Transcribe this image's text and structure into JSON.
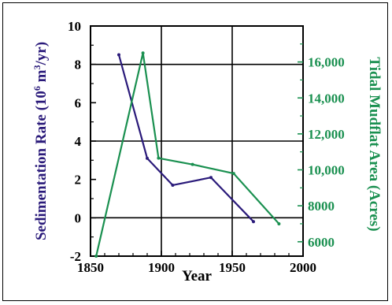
{
  "chart_data": {
    "type": "line",
    "title": "",
    "xlabel": "Year",
    "ylabel_left": "Sedimentation Rate (10^6 m^3/yr)",
    "ylabel_left_parts": {
      "pre": "Sedimentation Rate (10",
      "sup1": "6",
      "mid": " m",
      "sup2": "3",
      "post": "/yr)"
    },
    "ylabel_right": "Tidal Mudflat Area (Acres)",
    "xlim": [
      1850,
      2000
    ],
    "ylim_left": [
      -2,
      10
    ],
    "ylim_right": [
      5200,
      18000
    ],
    "x_ticks": [
      1850,
      1900,
      1950,
      2000
    ],
    "x_tick_labels": [
      "1850",
      "1900",
      "1950",
      "2000"
    ],
    "y_left_ticks": [
      -2,
      0,
      2,
      4,
      6,
      8,
      10
    ],
    "y_left_tick_labels": [
      "-2",
      "0",
      "2",
      "4",
      "6",
      "8",
      "10"
    ],
    "y_right_ticks": [
      6000,
      8000,
      10000,
      12000,
      14000,
      16000
    ],
    "y_right_tick_labels": [
      "6000",
      "8000",
      "10,000",
      "12,000",
      "14,000",
      "16,000"
    ],
    "grid": true,
    "series": [
      {
        "axis": "left",
        "color": "#2a1a7a",
        "x": [
          1870,
          1890,
          1908,
          1935,
          1965
        ],
        "y": [
          8.5,
          3.1,
          1.7,
          2.1,
          -0.2
        ]
      },
      {
        "axis": "right",
        "color": "#1a9050",
        "x": [
          1854,
          1887,
          1898,
          1922,
          1951,
          1983
        ],
        "y": [
          5200,
          16500,
          10650,
          10300,
          9800,
          7000
        ]
      }
    ]
  }
}
